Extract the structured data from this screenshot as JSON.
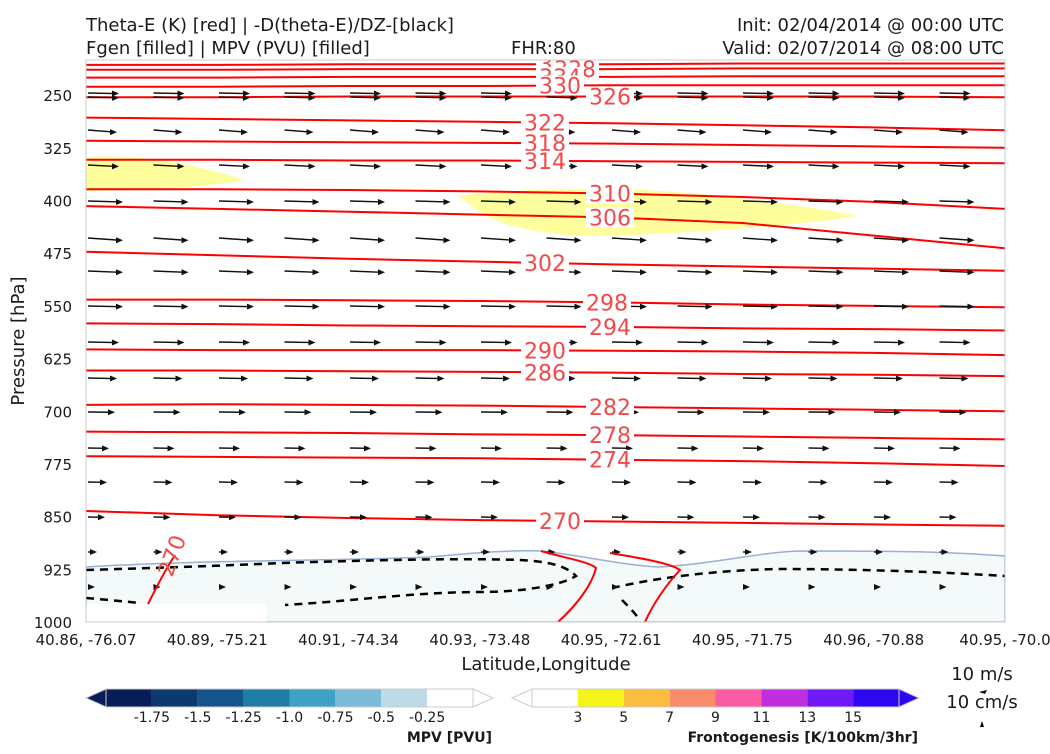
{
  "header": {
    "line1_left": "Theta-E (K) [red] | -D(theta-E)/DZ-[black]",
    "line2_left": "Fgen [filled] | MPV (PVU) [filled]",
    "fhr": "FHR:80",
    "init": "Init: 02/04/2014 @ 00:00 UTC",
    "valid": "Valid: 02/07/2014 @ 08:00 UTC"
  },
  "chart_data": {
    "type": "cross-section",
    "xlabel": "Latitude,Longitude",
    "ylabel": "Pressure [hPa]",
    "ylim": [
      1000,
      200
    ],
    "x_ticks": [
      "40.86, -76.07",
      "40.89, -75.21",
      "40.91, -74.34",
      "40.93, -73.48",
      "40.95, -72.61",
      "40.95, -71.75",
      "40.96, -70.88",
      "40.95, -70.0"
    ],
    "y_ticks": [
      250,
      325,
      400,
      475,
      550,
      625,
      700,
      775,
      850,
      925,
      1000
    ],
    "contours": [
      {
        "value": "342",
        "p": [
          207,
          207,
          206,
          206,
          206,
          205,
          205,
          205
        ]
      },
      {
        "value": "338",
        "p": [
          214,
          214,
          213,
          213,
          213,
          212,
          212,
          212
        ]
      },
      {
        "value": "334",
        "p": [
          225,
          225,
          224,
          224,
          224,
          223,
          223,
          223
        ]
      },
      {
        "value": "330",
        "p": [
          238,
          238,
          237,
          237,
          236,
          236,
          236,
          236
        ]
      },
      {
        "value": "326",
        "p": [
          253,
          253,
          252,
          252,
          252,
          252,
          252,
          253
        ]
      },
      {
        "value": "322",
        "p": [
          282,
          284,
          286,
          288,
          290,
          293,
          296,
          300
        ]
      },
      {
        "value": "318",
        "p": [
          315,
          316,
          317,
          318,
          319,
          321,
          323,
          325
        ]
      },
      {
        "value": "314",
        "p": [
          342,
          342,
          343,
          343,
          344,
          345,
          346,
          347
        ]
      },
      {
        "value": "310",
        "p": [
          384,
          384,
          385,
          387,
          390,
          395,
          402,
          412
        ]
      },
      {
        "value": "306",
        "p": [
          408,
          412,
          416,
          420,
          424,
          432,
          450,
          468
        ]
      },
      {
        "value": "302",
        "p": [
          473,
          478,
          483,
          487,
          491,
          494,
          497,
          500
        ]
      },
      {
        "value": "298",
        "p": [
          541,
          541,
          542,
          543,
          545,
          548,
          550,
          552
        ]
      },
      {
        "value": "294",
        "p": [
          575,
          576,
          578,
          579,
          580,
          582,
          583,
          585
        ]
      },
      {
        "value": "290",
        "p": [
          612,
          613,
          613,
          613,
          614,
          615,
          617,
          620
        ]
      },
      {
        "value": "286",
        "p": [
          642,
          642,
          643,
          644,
          645,
          647,
          648,
          650
        ]
      },
      {
        "value": "282",
        "p": [
          691,
          690,
          691,
          692,
          694,
          696,
          698,
          700
        ]
      },
      {
        "value": "278",
        "p": [
          729,
          730,
          731,
          733,
          734,
          736,
          738,
          740
        ]
      },
      {
        "value": "274",
        "p": [
          764,
          765,
          766,
          767,
          769,
          771,
          774,
          778
        ]
      },
      {
        "value": "270",
        "p": [
          842,
          848,
          852,
          855,
          857,
          859,
          861,
          863
        ]
      }
    ],
    "frontogenesis_levels": [
      "3",
      "5",
      "7",
      "9",
      "11",
      "13",
      "15"
    ],
    "frontogenesis_colors": [
      "#ffffff",
      "#f7f41a",
      "#fbbc40",
      "#fb8c6b",
      "#fb5ba2",
      "#c02ee0",
      "#6f1af5",
      "#2c07f0"
    ],
    "mpv_levels": [
      "-1.75",
      "-1.5",
      "-1.25",
      "-1.0",
      "-0.75",
      "-0.5",
      "-0.25"
    ],
    "mpv_colors": [
      "#081d58",
      "#0c3970",
      "#14548b",
      "#1f7ea5",
      "#3da2c4",
      "#7bbcd6",
      "#bcdbe6",
      "#ffffff"
    ],
    "mpv_label": "MPV [PVU]",
    "fgen_label": "Frontogenesis [K/100km/3hr]",
    "vector_key": [
      "10 m/s",
      "10 cm/s"
    ]
  }
}
